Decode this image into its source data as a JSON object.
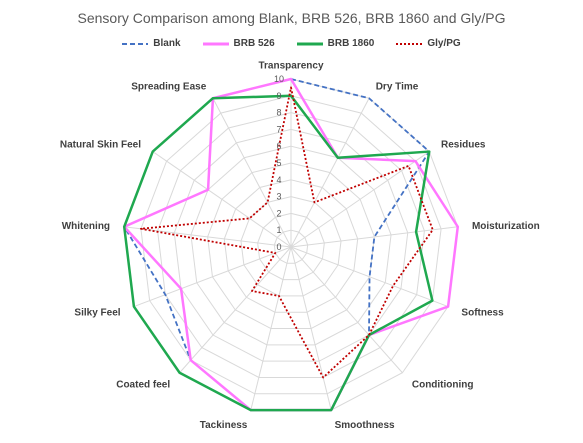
{
  "chart_data": {
    "type": "radar",
    "title": "Sensory Comparison among Blank, BRB 526, BRB 1860 and Gly/PG",
    "axes": [
      "Transparency",
      "Dry Time",
      "Residues",
      "Moisturization",
      "Softness",
      "Conditioning",
      "Smoothness",
      "Tackiness",
      "Coated feel",
      "Silky Feel",
      "Whitening",
      "Natural Skin Feel",
      "Spreading Ease"
    ],
    "range": [
      0,
      10
    ],
    "ticks": [
      "0",
      "1",
      "2",
      "3",
      "4",
      "5",
      "6",
      "7",
      "8",
      "9",
      "10"
    ],
    "legend_position": "top",
    "series": [
      {
        "name": "Blank",
        "color": "#4472c4",
        "style": "dashed",
        "values": [
          10,
          10,
          10,
          5,
          5,
          7,
          10,
          10,
          9,
          8,
          10,
          10,
          10
        ]
      },
      {
        "name": "BRB 526",
        "color": "#ff77ff",
        "style": "solid",
        "values": [
          10,
          6,
          9,
          10,
          10,
          7,
          10,
          10,
          9,
          7,
          10,
          6,
          10
        ]
      },
      {
        "name": "BRB 1860",
        "color": "#1fa84f",
        "style": "solid",
        "values": [
          9,
          6,
          10,
          7.5,
          9,
          7,
          10,
          10,
          10,
          10,
          10,
          10,
          10
        ]
      },
      {
        "name": "Gly/PG",
        "color": "#c00000",
        "style": "dotted",
        "values": [
          9.5,
          3,
          8.5,
          8.5,
          6.5,
          7,
          8,
          3,
          3.5,
          1,
          9,
          3,
          3
        ]
      }
    ]
  }
}
